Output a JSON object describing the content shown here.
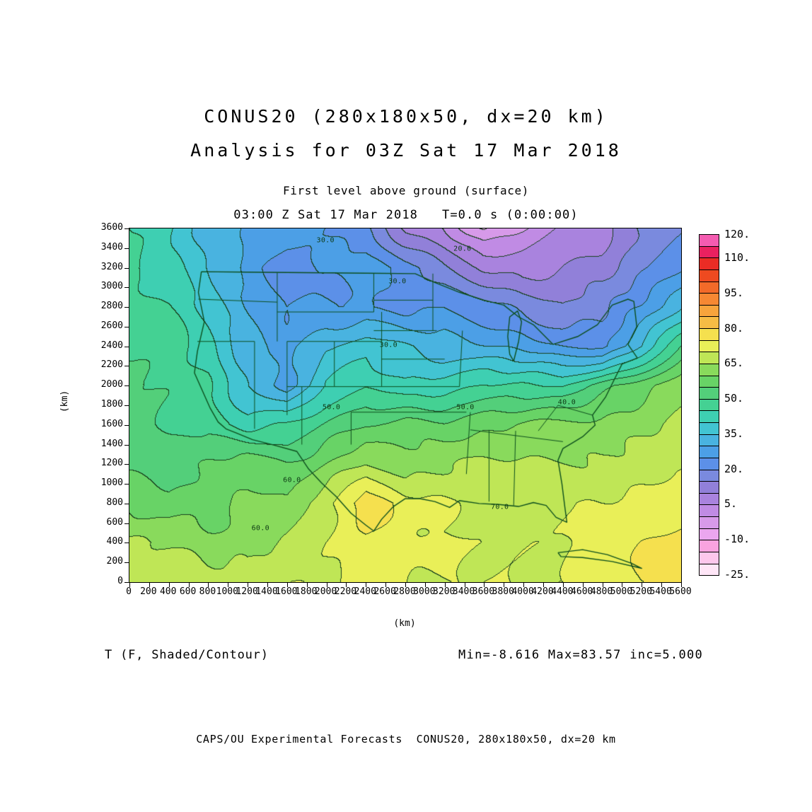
{
  "header": {
    "title_line1": "CONUS20 (280x180x50, dx=20 km)",
    "title_line2": "Analysis for 03Z Sat 17 Mar 2018",
    "level_line": "First level above ground (surface)",
    "time_line": "03:00 Z Sat 17 Mar 2018   T=0.0 s (0:00:00)"
  },
  "footer": {
    "variable_label": "T (F, Shaded/Contour)",
    "stats_label": "Min=-8.616 Max=83.57 inc=5.000",
    "credit_line": "CAPS/OU Experimental Forecasts  CONUS20, 280x180x50, dx=20 km"
  },
  "chart_data": {
    "type": "heatmap",
    "title": "CONUS20 (280x180x50, dx=20 km) Analysis for 03Z Sat 17 Mar 2018",
    "field": "Surface temperature, shaded/contour",
    "units": "F",
    "xlabel": "(km)",
    "ylabel": "(km)",
    "x_range": [
      0,
      5600
    ],
    "y_range": [
      0,
      3600
    ],
    "x_ticks": [
      0,
      200,
      400,
      600,
      800,
      1000,
      1200,
      1400,
      1600,
      1800,
      2000,
      2200,
      2400,
      2600,
      2800,
      3000,
      3200,
      3400,
      3600,
      3800,
      4000,
      4200,
      4400,
      4600,
      4800,
      5000,
      5200,
      5400,
      5600
    ],
    "y_ticks": [
      0,
      200,
      400,
      600,
      800,
      1000,
      1200,
      1400,
      1600,
      1800,
      2000,
      2200,
      2400,
      2600,
      2800,
      3000,
      3200,
      3400,
      3600
    ],
    "stats": {
      "min": -8.616,
      "max": 83.57,
      "contour_interval": 5.0
    },
    "levels": {
      "min": -25,
      "max": 120,
      "step": 5,
      "colors": [
        "#ffe6f7",
        "#fdc7ec",
        "#f9a3df",
        "#eba6ef",
        "#d79ae9",
        "#c08be4",
        "#a983de",
        "#9180d9",
        "#7a8ade",
        "#5c90e8",
        "#4c9fe6",
        "#49b3e0",
        "#42c4d2",
        "#3ecfb2",
        "#44d193",
        "#53cf7a",
        "#68d366",
        "#89da5c",
        "#bfe656",
        "#e9ef58",
        "#f5e04e",
        "#f6bc45",
        "#f7a43c",
        "#f68833",
        "#f26a29",
        "#ee4a20",
        "#ea2c25",
        "#ea2160",
        "#f45cb1"
      ]
    },
    "colorbar_ticks": [
      {
        "v": 120,
        "label": "120."
      },
      {
        "v": 110,
        "label": "110."
      },
      {
        "v": 95,
        "label": "95."
      },
      {
        "v": 80,
        "label": "80."
      },
      {
        "v": 65,
        "label": "65."
      },
      {
        "v": 50,
        "label": "50."
      },
      {
        "v": 35,
        "label": "35."
      },
      {
        "v": 20,
        "label": "20."
      },
      {
        "v": 5,
        "label": "5."
      },
      {
        "v": -10,
        "label": "-10."
      },
      {
        "v": -25,
        "label": "-25."
      }
    ],
    "grid": {
      "x": [
        0,
        400,
        800,
        1200,
        1600,
        2000,
        2400,
        2800,
        3200,
        3600,
        4000,
        4400,
        4800,
        5200,
        5600
      ],
      "y_top_to_bottom": [
        3600,
        3200,
        2800,
        2400,
        2000,
        1600,
        1200,
        800,
        400,
        0
      ],
      "values": [
        [
          45,
          40,
          33,
          30,
          28,
          25,
          20,
          10,
          5,
          -5,
          0,
          5,
          8,
          15,
          20
        ],
        [
          46,
          42,
          35,
          28,
          22,
          25,
          28,
          22,
          15,
          10,
          8,
          10,
          12,
          18,
          25
        ],
        [
          48,
          45,
          38,
          30,
          25,
          25,
          25,
          22,
          25,
          22,
          18,
          15,
          18,
          25,
          35
        ],
        [
          50,
          48,
          42,
          32,
          28,
          35,
          38,
          35,
          32,
          30,
          28,
          25,
          22,
          35,
          50
        ],
        [
          52,
          50,
          45,
          35,
          27,
          40,
          45,
          40,
          42,
          45,
          45,
          45,
          52,
          58,
          62
        ],
        [
          52,
          50,
          48,
          42,
          45,
          50,
          55,
          58,
          56,
          58,
          60,
          62,
          62,
          64,
          66
        ],
        [
          54,
          52,
          55,
          58,
          55,
          60,
          66,
          62,
          64,
          66,
          66,
          66,
          66,
          68,
          68
        ],
        [
          58,
          56,
          58,
          60,
          62,
          68,
          79,
          72,
          70,
          68,
          68,
          70,
          70,
          72,
          74
        ],
        [
          66,
          64,
          62,
          62,
          66,
          70,
          74,
          72,
          70,
          70,
          70,
          70,
          72,
          75,
          76
        ],
        [
          68,
          68,
          68,
          68,
          70,
          70,
          72,
          70,
          70,
          70,
          70,
          70,
          72,
          75,
          76
        ]
      ]
    },
    "contour_labels": [
      {
        "t": "30.0",
        "x": 1990,
        "y": 3480
      },
      {
        "t": "20.0",
        "x": 3380,
        "y": 3390
      },
      {
        "t": "30.0",
        "x": 2720,
        "y": 3060
      },
      {
        "t": "30.0",
        "x": 2630,
        "y": 2410
      },
      {
        "t": "50.0",
        "x": 2050,
        "y": 1780
      },
      {
        "t": "50.0",
        "x": 3410,
        "y": 1780
      },
      {
        "t": "40.0",
        "x": 4440,
        "y": 1830
      },
      {
        "t": "60.0",
        "x": 1650,
        "y": 1040
      },
      {
        "t": "60.0",
        "x": 1330,
        "y": 550
      },
      {
        "t": "70.0",
        "x": 3760,
        "y": 760
      }
    ],
    "basemap": {
      "color": "#0c4f1e",
      "conus": [
        [
          730,
          3160
        ],
        [
          1200,
          3155
        ],
        [
          1800,
          3150
        ],
        [
          2400,
          3145
        ],
        [
          2900,
          3140
        ],
        [
          3100,
          3050
        ],
        [
          3350,
          2950
        ],
        [
          3600,
          2870
        ],
        [
          3800,
          2820
        ],
        [
          3950,
          2700
        ],
        [
          4100,
          2620
        ],
        [
          4300,
          2420
        ],
        [
          4550,
          2500
        ],
        [
          4750,
          2620
        ],
        [
          4900,
          2820
        ],
        [
          5060,
          2880
        ],
        [
          5120,
          2858
        ],
        [
          5150,
          2600
        ],
        [
          5060,
          2420
        ],
        [
          5156,
          2282
        ],
        [
          5000,
          2220
        ],
        [
          4960,
          2140
        ],
        [
          4834,
          1886
        ],
        [
          4700,
          1700
        ],
        [
          4727,
          1598
        ],
        [
          4600,
          1480
        ],
        [
          4500,
          1420
        ],
        [
          4400,
          1360
        ],
        [
          4350,
          1240
        ],
        [
          4390,
          1000
        ],
        [
          4420,
          760
        ],
        [
          4440,
          610
        ],
        [
          4330,
          660
        ],
        [
          4230,
          780
        ],
        [
          4100,
          810
        ],
        [
          3950,
          770
        ],
        [
          3750,
          790
        ],
        [
          3550,
          800
        ],
        [
          3350,
          830
        ],
        [
          3250,
          760
        ],
        [
          3100,
          820
        ],
        [
          2950,
          850
        ],
        [
          2800,
          850
        ],
        [
          2680,
          770
        ],
        [
          2560,
          640
        ],
        [
          2480,
          520
        ],
        [
          2400,
          580
        ],
        [
          2250,
          700
        ],
        [
          2100,
          870
        ],
        [
          1950,
          1010
        ],
        [
          1820,
          1150
        ],
        [
          1700,
          1330
        ],
        [
          1450,
          1400
        ],
        [
          1250,
          1450
        ],
        [
          1080,
          1520
        ],
        [
          980,
          1560
        ],
        [
          900,
          1630
        ],
        [
          820,
          1770
        ],
        [
          740,
          1950
        ],
        [
          660,
          2130
        ],
        [
          690,
          2350
        ],
        [
          760,
          2650
        ],
        [
          700,
          2950
        ],
        [
          730,
          3160
        ]
      ],
      "lake_michigan": [
        [
          3900,
          2250
        ],
        [
          3950,
          2450
        ],
        [
          3980,
          2650
        ],
        [
          3940,
          2760
        ],
        [
          3860,
          2700
        ],
        [
          3840,
          2500
        ],
        [
          3860,
          2320
        ],
        [
          3900,
          2250
        ]
      ],
      "cuba": [
        [
          4350,
          300
        ],
        [
          4600,
          330
        ],
        [
          4850,
          280
        ],
        [
          5100,
          190
        ],
        [
          5200,
          140
        ],
        [
          4900,
          210
        ],
        [
          4600,
          250
        ],
        [
          4380,
          260
        ],
        [
          4350,
          300
        ]
      ],
      "state_lines": [
        [
          [
            690,
            2450
          ],
          [
            1270,
            2450
          ]
        ],
        [
          [
            1270,
            1560
          ],
          [
            1270,
            2450
          ]
        ],
        [
          [
            700,
            2880
          ],
          [
            1500,
            2850
          ]
        ],
        [
          [
            1500,
            2450
          ],
          [
            1500,
            3150
          ]
        ],
        [
          [
            1500,
            2750
          ],
          [
            2480,
            2750
          ]
        ],
        [
          [
            1600,
            1700
          ],
          [
            1600,
            2450
          ]
        ],
        [
          [
            1600,
            2450
          ],
          [
            2080,
            2450
          ]
        ],
        [
          [
            1750,
            1400
          ],
          [
            1750,
            1990
          ]
        ],
        [
          [
            1600,
            1990
          ],
          [
            2080,
            1990
          ]
        ],
        [
          [
            2080,
            1990
          ],
          [
            2080,
            2450
          ]
        ],
        [
          [
            2080,
            2450
          ],
          [
            2560,
            2450
          ]
        ],
        [
          [
            2560,
            1990
          ],
          [
            2560,
            2750
          ]
        ],
        [
          [
            2080,
            1990
          ],
          [
            2560,
            1990
          ]
        ],
        [
          [
            2480,
            2750
          ],
          [
            2480,
            3145
          ]
        ],
        [
          [
            2480,
            2870
          ],
          [
            3080,
            2870
          ]
        ],
        [
          [
            2480,
            2560
          ],
          [
            3120,
            2560
          ]
        ],
        [
          [
            3080,
            2560
          ],
          [
            3080,
            3140
          ]
        ],
        [
          [
            2560,
            2270
          ],
          [
            3200,
            2270
          ]
        ],
        [
          [
            2560,
            1990
          ],
          [
            3350,
            1990
          ]
        ],
        [
          [
            2250,
            1730
          ],
          [
            3420,
            1730
          ]
        ],
        [
          [
            2250,
            1400
          ],
          [
            2250,
            1730
          ]
        ],
        [
          [
            3350,
            1990
          ],
          [
            3380,
            2560
          ]
        ],
        [
          [
            3420,
            1100
          ],
          [
            3460,
            1730
          ]
        ],
        [
          [
            3650,
            820
          ],
          [
            3650,
            1550
          ]
        ],
        [
          [
            3900,
            780
          ],
          [
            3920,
            1540
          ]
        ],
        [
          [
            3460,
            1550
          ],
          [
            4400,
            1430
          ]
        ],
        [
          [
            4150,
            1540
          ],
          [
            4350,
            1800
          ]
        ],
        [
          [
            4350,
            1800
          ],
          [
            4700,
            1700
          ]
        ]
      ]
    }
  }
}
